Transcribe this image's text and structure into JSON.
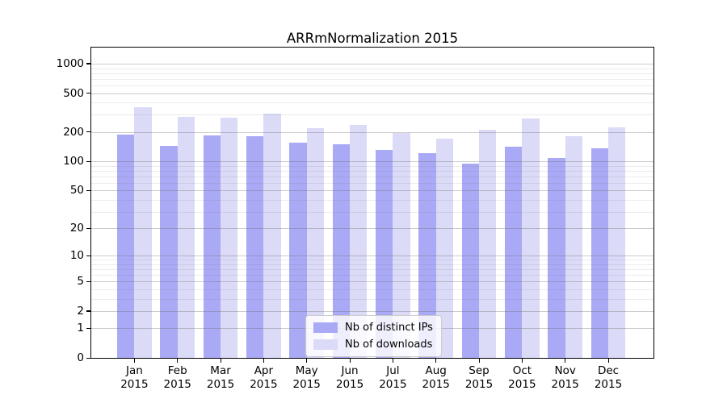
{
  "chart_data": {
    "type": "bar",
    "title": "ARRmNormalization 2015",
    "months": [
      "Jan",
      "Feb",
      "Mar",
      "Apr",
      "May",
      "Jun",
      "Jul",
      "Aug",
      "Sep",
      "Oct",
      "Nov",
      "Dec"
    ],
    "year_label": "2015",
    "series": [
      {
        "name": "Nb of distinct IPs",
        "color": "#aaa9f5",
        "values": [
          190,
          145,
          186,
          182,
          155,
          150,
          132,
          121,
          94,
          142,
          108,
          135
        ]
      },
      {
        "name": "Nb of downloads",
        "color": "#dbdaf7",
        "values": [
          356,
          286,
          283,
          308,
          221,
          238,
          194,
          171,
          212,
          277,
          180,
          224
        ]
      }
    ],
    "xlabel": "",
    "ylabel": "",
    "yscale": "log10(1+y)",
    "ylim": [
      0,
      1460
    ],
    "yticks": [
      0,
      1,
      2,
      5,
      10,
      20,
      50,
      100,
      200,
      500,
      1000
    ],
    "minor_grid_values": [
      3,
      4,
      6,
      7,
      8,
      9,
      30,
      40,
      60,
      70,
      80,
      90,
      300,
      400,
      600,
      700,
      800,
      900
    ],
    "grid": true,
    "legend_position": "inside-bottom-center"
  }
}
